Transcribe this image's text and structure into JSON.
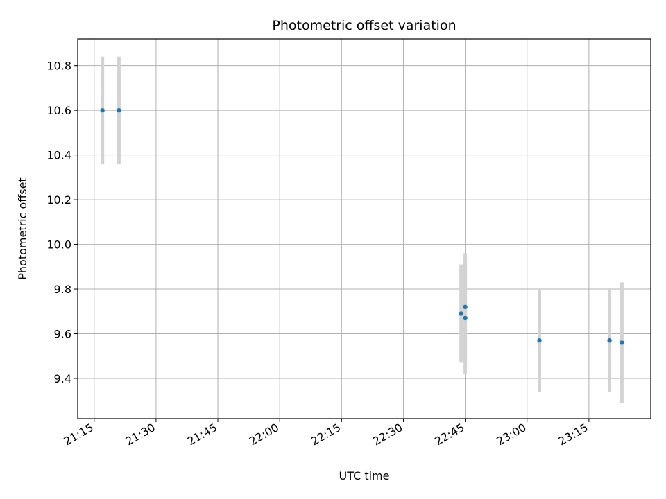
{
  "chart_data": {
    "type": "scatter",
    "title": "Photometric offset variation",
    "xlabel": "UTC time",
    "ylabel": "Photometric offset",
    "grid": true,
    "colors": {
      "point": "#1f77b4",
      "errorbar": "#d3d3d3",
      "grid": "#b0b0b0",
      "axes": "#000000"
    },
    "xlim": [
      "21:11",
      "23:30"
    ],
    "ylim": [
      9.22,
      10.92
    ],
    "x_ticks": [
      "21:15",
      "21:30",
      "21:45",
      "22:00",
      "22:15",
      "22:30",
      "22:45",
      "23:00",
      "23:15"
    ],
    "y_ticks": [
      "9.4",
      "9.6",
      "9.8",
      "10.0",
      "10.2",
      "10.4",
      "10.6",
      "10.8"
    ],
    "series": [
      {
        "points": [
          {
            "x": "21:17",
            "y": 10.6,
            "yerr": 0.24
          },
          {
            "x": "21:21",
            "y": 10.6,
            "yerr": 0.24
          },
          {
            "x": "22:44",
            "y": 9.69,
            "yerr": 0.22
          },
          {
            "x": "22:45",
            "y": 9.72,
            "yerr": 0.24
          },
          {
            "x": "22:45",
            "y": 9.67,
            "yerr": 0.25
          },
          {
            "x": "23:03",
            "y": 9.57,
            "yerr": 0.23
          },
          {
            "x": "23:20",
            "y": 9.57,
            "yerr": 0.23
          },
          {
            "x": "23:23",
            "y": 9.56,
            "yerr": 0.27
          }
        ]
      }
    ]
  }
}
